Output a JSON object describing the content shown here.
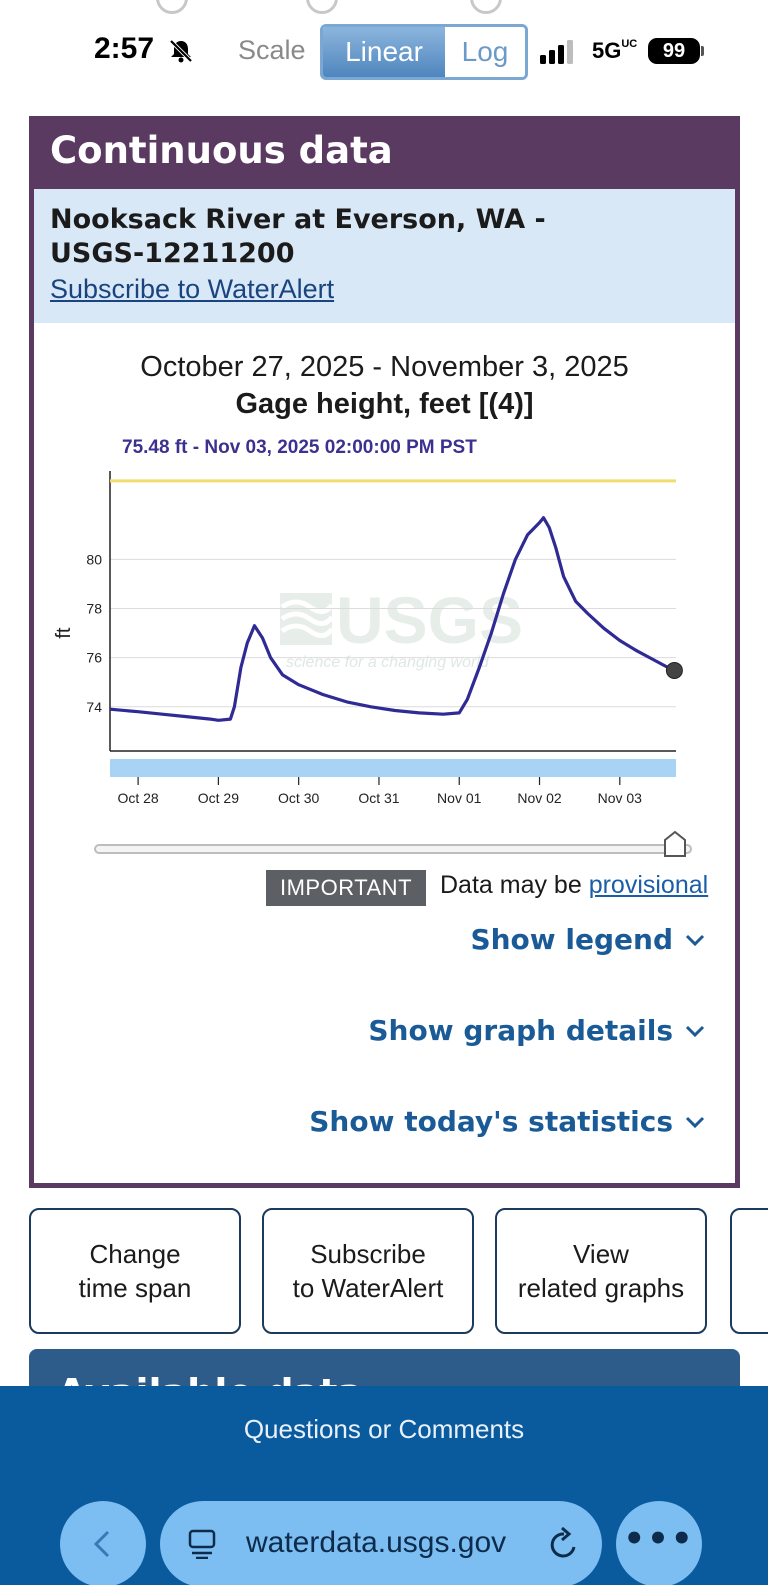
{
  "status_bar": {
    "time": "2:57",
    "network": "5G",
    "network_suffix": "UC",
    "battery": "99"
  },
  "scale_toggle": {
    "label": "Scale",
    "linear": "Linear",
    "log": "Log",
    "selected": "Linear"
  },
  "panel": {
    "header": "Continuous data",
    "site_title": "Nooksack River at Everson, WA - USGS-12211200",
    "subscribe_link": "Subscribe to WaterAlert",
    "date_range": "October 27, 2025 - November 3, 2025",
    "parameter_title": "Gage height, feet [(4)]",
    "hover_readout": "75.48 ft - Nov 03, 2025 02:00:00 PM PST",
    "important_badge": "IMPORTANT",
    "provisional_prefix": "Data may be ",
    "provisional_link": "provisional",
    "expanders": {
      "legend": "Show legend",
      "graph_details": "Show graph details",
      "todays_statistics": "Show today's statistics"
    }
  },
  "chart_data": {
    "type": "line",
    "ylabel": "ft",
    "yticks": [
      74,
      76,
      78,
      80
    ],
    "ylim": [
      72.2,
      83.6
    ],
    "xticks": [
      "Oct 28",
      "Oct 29",
      "Oct 30",
      "Oct 31",
      "Nov 01",
      "Nov 02",
      "Nov 03"
    ],
    "x_days_range": [
      -0.35,
      6.7
    ],
    "threshold_line": {
      "value": 83.2,
      "color": "#f2dd6b"
    },
    "series": [
      {
        "color": "#2f2a94",
        "points": [
          [
            -0.35,
            73.9
          ],
          [
            0.0,
            73.8
          ],
          [
            0.3,
            73.7
          ],
          [
            0.6,
            73.6
          ],
          [
            0.9,
            73.5
          ],
          [
            1.0,
            73.45
          ],
          [
            1.15,
            73.5
          ],
          [
            1.2,
            74.0
          ],
          [
            1.28,
            75.6
          ],
          [
            1.36,
            76.6
          ],
          [
            1.45,
            77.3
          ],
          [
            1.55,
            76.8
          ],
          [
            1.65,
            76.0
          ],
          [
            1.8,
            75.3
          ],
          [
            2.0,
            74.9
          ],
          [
            2.3,
            74.5
          ],
          [
            2.6,
            74.2
          ],
          [
            2.9,
            74.0
          ],
          [
            3.2,
            73.85
          ],
          [
            3.5,
            73.75
          ],
          [
            3.8,
            73.7
          ],
          [
            4.0,
            73.75
          ],
          [
            4.1,
            74.3
          ],
          [
            4.25,
            75.6
          ],
          [
            4.4,
            77.0
          ],
          [
            4.55,
            78.6
          ],
          [
            4.7,
            80.0
          ],
          [
            4.85,
            81.0
          ],
          [
            5.0,
            81.5
          ],
          [
            5.05,
            81.7
          ],
          [
            5.12,
            81.3
          ],
          [
            5.2,
            80.5
          ],
          [
            5.3,
            79.3
          ],
          [
            5.45,
            78.3
          ],
          [
            5.6,
            77.8
          ],
          [
            5.8,
            77.2
          ],
          [
            6.0,
            76.7
          ],
          [
            6.2,
            76.3
          ],
          [
            6.4,
            75.95
          ],
          [
            6.6,
            75.6
          ],
          [
            6.68,
            75.48
          ]
        ]
      }
    ],
    "highlight_point": {
      "x": 6.68,
      "y": 75.48
    },
    "watermark": "USGS",
    "watermark_tagline": "science for a changing world"
  },
  "buttons": {
    "change_time_span": [
      "Change",
      "time span"
    ],
    "subscribe": [
      "Subscribe",
      "to WaterAlert"
    ],
    "related_graphs": [
      "View",
      "related graphs"
    ]
  },
  "next_section_title": "Available data",
  "footer": {
    "questions_link": "Questions or Comments"
  },
  "browser": {
    "url": "waterdata.usgs.gov"
  },
  "colors": {
    "panel_purple": "#5b3a62",
    "site_box_blue": "#d9e8f6",
    "series_line": "#2f2a94",
    "footer_blue": "#0a5a9e",
    "link_blue": "#1a5a96"
  }
}
